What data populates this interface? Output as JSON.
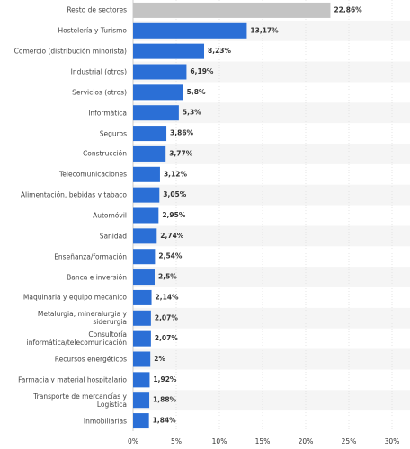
{
  "chart_data": {
    "type": "hbar",
    "categories": [
      "Resto de sectores",
      "Hostelería y Turismo",
      "Comercio (distribución minorista)",
      "Industrial (otros)",
      "Servicios (otros)",
      "Informática",
      "Seguros",
      "Construcción",
      "Telecomunicaciones",
      "Alimentación, bebidas y tabaco",
      "Automóvil",
      "Sanidad",
      "Enseñanza/formación",
      "Banca e inversión",
      "Maquinaria y equipo mecánico",
      "Metalurgia, mineralurgia y siderurgia",
      "Consultoría informática/telecomunicación",
      "Recursos energéticos",
      "Farmacia y material hospitalario",
      "Transporte de mercancías y Logística",
      "Inmobiliarias"
    ],
    "values": [
      22.86,
      13.17,
      8.23,
      6.19,
      5.8,
      5.3,
      3.86,
      3.77,
      3.12,
      3.05,
      2.95,
      2.74,
      2.54,
      2.5,
      2.14,
      2.07,
      2.07,
      2,
      1.92,
      1.88,
      1.84
    ],
    "value_labels": [
      "22,86%",
      "13,17%",
      "8,23%",
      "6,19%",
      "5,8%",
      "5,3%",
      "3,86%",
      "3,77%",
      "3,12%",
      "3,05%",
      "2,95%",
      "2,74%",
      "2,54%",
      "2,5%",
      "2,14%",
      "2,07%",
      "2,07%",
      "2%",
      "1,92%",
      "1,88%",
      "1,84%"
    ],
    "colors": [
      "#c4c4c4",
      "#2b6fd6",
      "#2b6fd6",
      "#2b6fd6",
      "#2b6fd6",
      "#2b6fd6",
      "#2b6fd6",
      "#2b6fd6",
      "#2b6fd6",
      "#2b6fd6",
      "#2b6fd6",
      "#2b6fd6",
      "#2b6fd6",
      "#2b6fd6",
      "#2b6fd6",
      "#2b6fd6",
      "#2b6fd6",
      "#2b6fd6",
      "#2b6fd6",
      "#2b6fd6",
      "#2b6fd6"
    ],
    "xlim": [
      0,
      30
    ],
    "xticks": [
      {
        "value": 0,
        "label": "0%"
      },
      {
        "value": 5,
        "label": "5%"
      },
      {
        "value": 10,
        "label": "10%"
      },
      {
        "value": 15,
        "label": "15%"
      },
      {
        "value": 20,
        "label": "20%"
      },
      {
        "value": 25,
        "label": "25%"
      },
      {
        "value": 30,
        "label": "30%"
      }
    ],
    "grid": true
  }
}
